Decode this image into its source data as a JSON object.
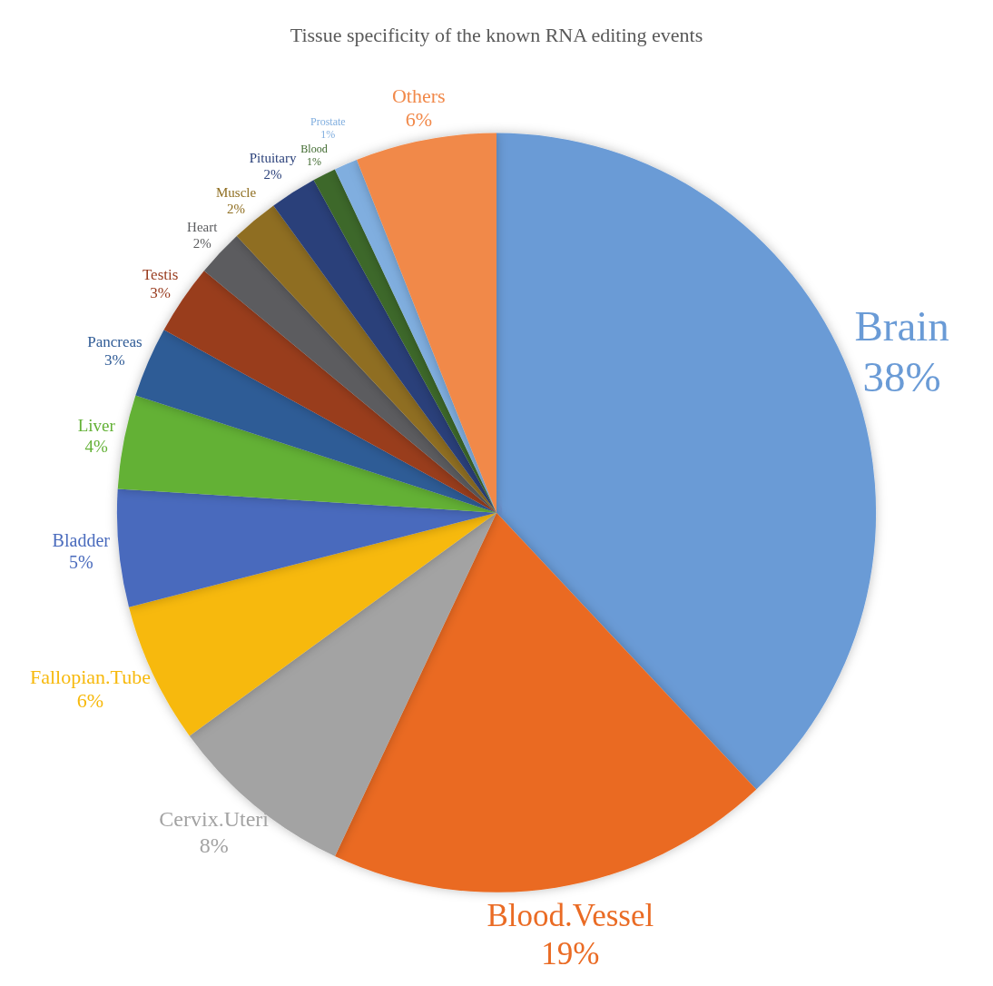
{
  "chart_data": {
    "type": "pie",
    "title": "Tissue specificity of the known RNA editing events",
    "categories": [
      "Brain",
      "Blood.Vessel",
      "Cervix.Uteri",
      "Fallopian.Tube",
      "Bladder",
      "Liver",
      "Pancreas",
      "Testis",
      "Heart",
      "Muscle",
      "Pituitary",
      "Blood",
      "Prostate",
      "Others"
    ],
    "values": [
      38,
      19,
      8,
      6,
      5,
      4,
      3,
      3,
      2,
      2,
      2,
      1,
      1,
      6
    ],
    "value_labels": [
      "38%",
      "19%",
      "8%",
      "6%",
      "5%",
      "4%",
      "3%",
      "3%",
      "2%",
      "2%",
      "2%",
      "1%",
      "1%",
      "6%"
    ],
    "colors": [
      "#6a9bd6",
      "#ea6b24",
      "#a3a3a3",
      "#f7b90d",
      "#4a6bbd",
      "#63b136",
      "#2f5b96",
      "#993c1f",
      "#5b5c5f",
      "#8f6e21",
      "#2b417a",
      "#3c672b",
      "#80aedf",
      "#f1894a"
    ],
    "legend": false
  }
}
